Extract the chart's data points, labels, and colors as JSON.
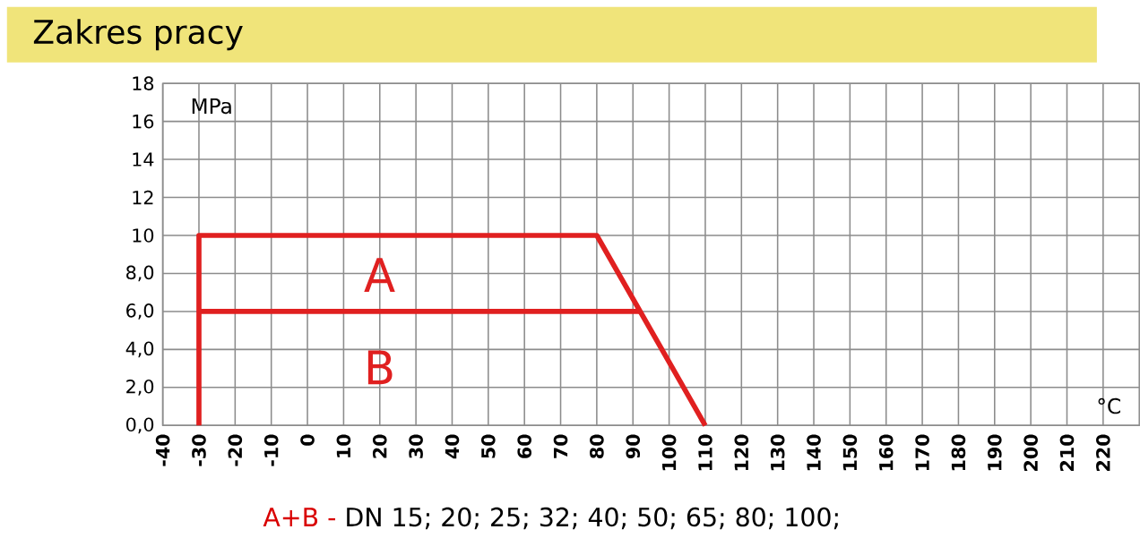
{
  "chart_data": {
    "type": "line",
    "title": "Zakres pracy",
    "xlabel": "°C",
    "ylabel": "MPa",
    "series": [
      {
        "name": "A",
        "color": "#e02020",
        "x": [
          -30,
          -30,
          80,
          110
        ],
        "values": [
          0,
          10,
          10,
          0
        ]
      },
      {
        "name": "B",
        "color": "#e02020",
        "x": [
          -30,
          92
        ],
        "values": [
          6,
          6
        ]
      }
    ],
    "xlim": [
      -40,
      230
    ],
    "xticks": [
      -40,
      -30,
      -20,
      -10,
      0,
      10,
      20,
      30,
      40,
      50,
      60,
      70,
      80,
      90,
      100,
      110,
      120,
      130,
      140,
      150,
      160,
      170,
      180,
      190,
      200,
      210,
      220
    ],
    "ylim": [
      0,
      18
    ],
    "yticks": [
      {
        "value": 0,
        "label": "0,0"
      },
      {
        "value": 2,
        "label": "2,0"
      },
      {
        "value": 4,
        "label": "4,0"
      },
      {
        "value": 6,
        "label": "6,0"
      },
      {
        "value": 8,
        "label": "8,0"
      },
      10,
      12,
      14,
      16,
      18
    ],
    "grid": true,
    "marker": "none",
    "line_style": "solid",
    "annotations": [
      "A+B -",
      "DN 15; 20; 25; 32; 40; 50; 65; 80; 100;"
    ]
  }
}
